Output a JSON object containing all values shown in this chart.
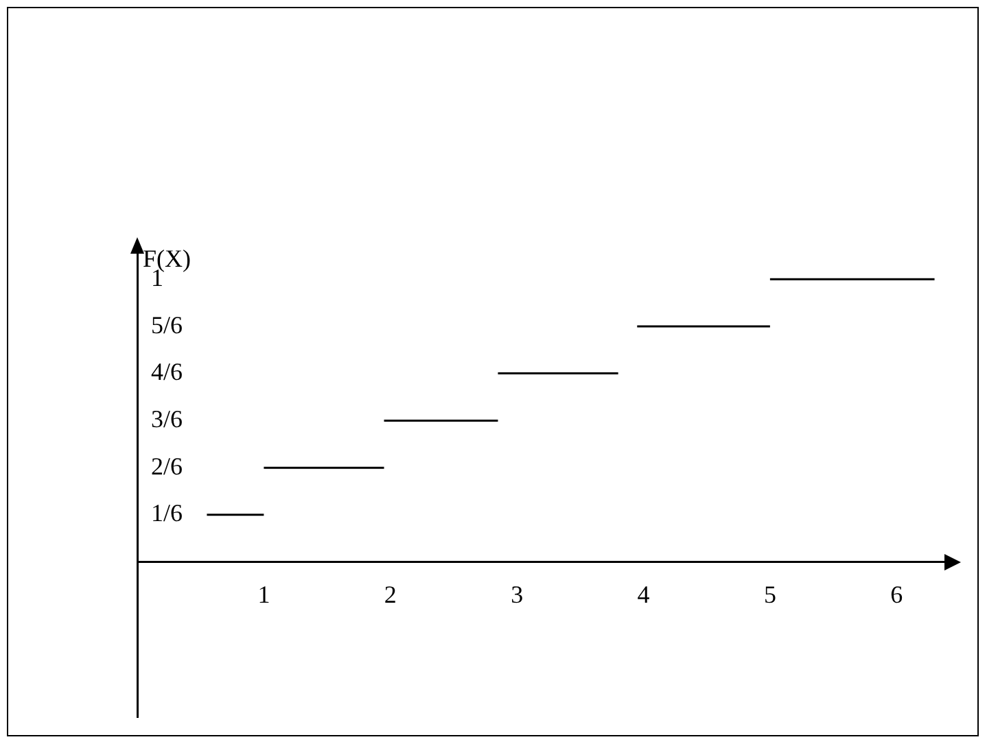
{
  "chart_data": {
    "type": "line",
    "ylabel": "F(X)",
    "series": [
      {
        "color": "#000000",
        "x": [
          0.55,
          1
        ],
        "values": [
          0.167,
          0.167
        ]
      },
      {
        "color": "#000000",
        "x": [
          1,
          1.95
        ],
        "values": [
          0.333,
          0.333
        ]
      },
      {
        "color": "#000000",
        "x": [
          1.95,
          2.85
        ],
        "values": [
          0.5,
          0.5
        ]
      },
      {
        "color": "#000000",
        "x": [
          2.85,
          3.8
        ],
        "values": [
          0.667,
          0.667
        ]
      },
      {
        "color": "#000000",
        "x": [
          3.95,
          5
        ],
        "values": [
          0.833,
          0.833
        ]
      },
      {
        "color": "#000000",
        "x": [
          5,
          6.3
        ],
        "values": [
          1,
          1
        ]
      }
    ],
    "xlim": [
      0,
      6.4
    ],
    "xticks": [
      1,
      2,
      3,
      4,
      5,
      6
    ],
    "ylim": [
      -0.55,
      1.1
    ],
    "yticks": [
      {
        "value": 0.167,
        "label": "1/6"
      },
      {
        "value": 0.333,
        "label": "2/6"
      },
      {
        "value": 0.5,
        "label": "3/6"
      },
      {
        "value": 0.667,
        "label": "4/6"
      },
      {
        "value": 0.833,
        "label": "5/6"
      },
      1
    ],
    "grid": false,
    "marker": "none",
    "line_style": "solid"
  }
}
